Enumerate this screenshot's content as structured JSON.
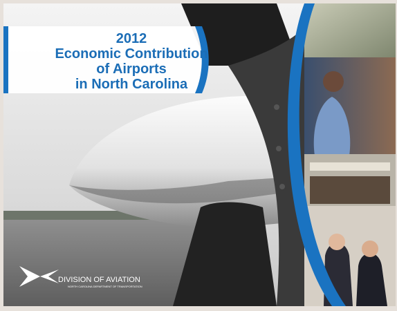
{
  "cover": {
    "title": {
      "year": "2012",
      "line1": "Economic Contribution",
      "line2": "of Airports",
      "line3": "in North Carolina"
    },
    "logo": {
      "name": "DIVISION OF AVIATION",
      "subtitle": "NORTH CAROLINA DEPARTMENT OF TRANSPORTATION"
    }
  }
}
